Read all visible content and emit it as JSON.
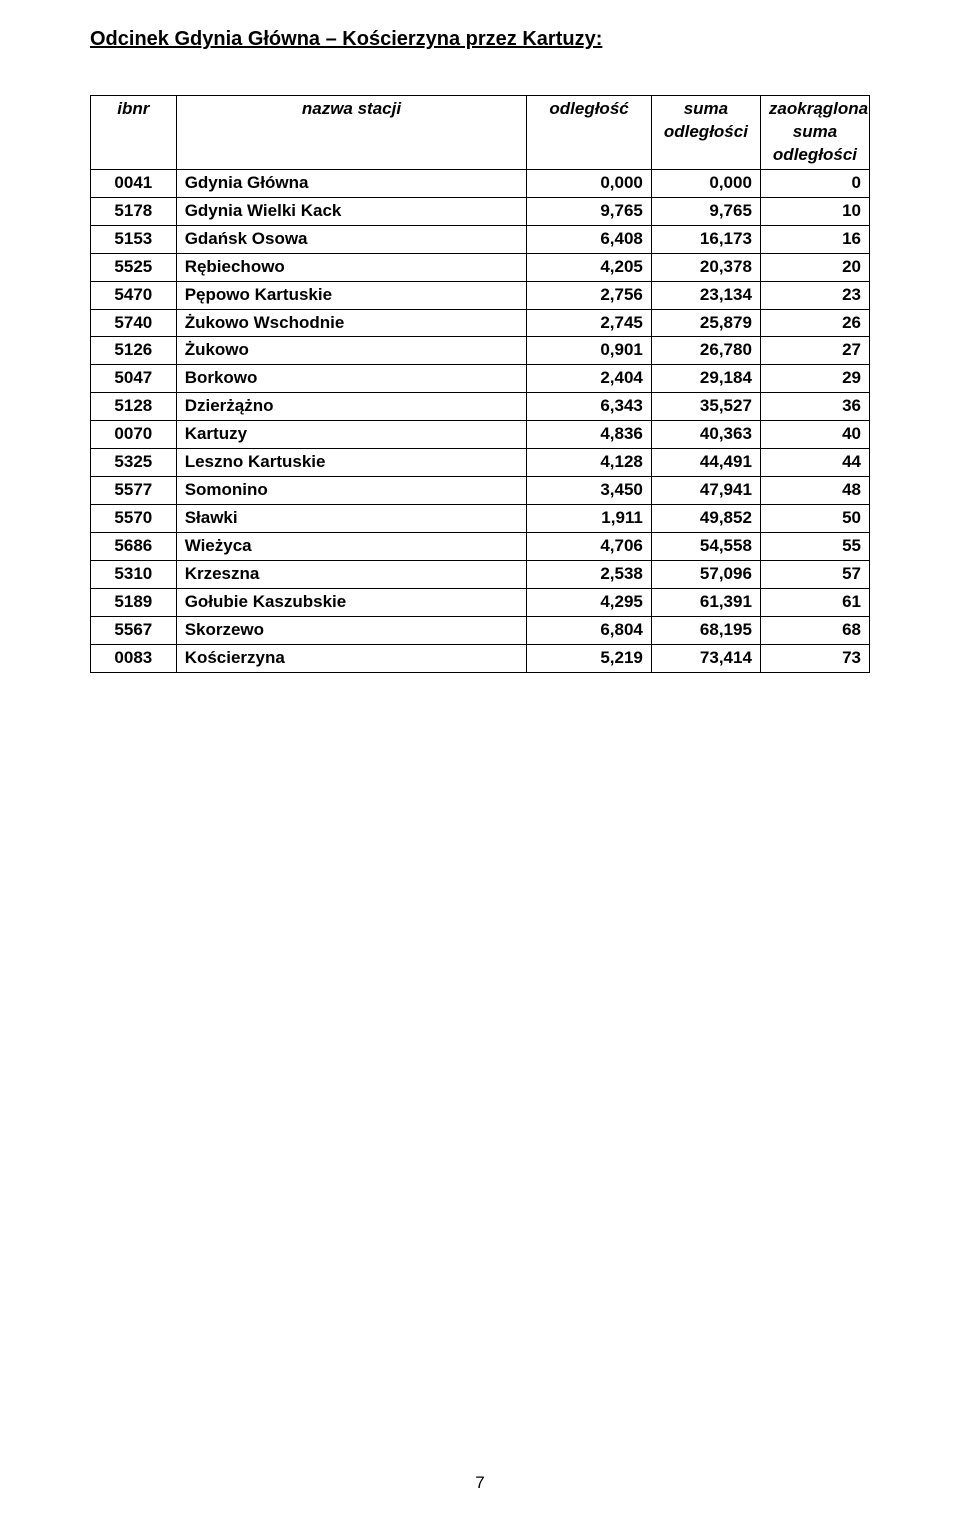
{
  "title": "Odcinek Gdynia Główna – Kościerzyna przez Kartuzy:",
  "page_number": "7",
  "table": {
    "columns": {
      "ibnr": "ibnr",
      "name": "nazwa stacji",
      "dist": "odległość",
      "sum": "suma odległości",
      "round": "zaokrąglona suma odległości"
    },
    "rows": [
      {
        "ibnr": "0041",
        "name": "Gdynia Główna",
        "dist": "0,000",
        "sum": "0,000",
        "round": "0"
      },
      {
        "ibnr": "5178",
        "name": "Gdynia Wielki Kack",
        "dist": "9,765",
        "sum": "9,765",
        "round": "10"
      },
      {
        "ibnr": "5153",
        "name": "Gdańsk Osowa",
        "dist": "6,408",
        "sum": "16,173",
        "round": "16"
      },
      {
        "ibnr": "5525",
        "name": "Rębiechowo",
        "dist": "4,205",
        "sum": "20,378",
        "round": "20"
      },
      {
        "ibnr": "5470",
        "name": "Pępowo Kartuskie",
        "dist": "2,756",
        "sum": "23,134",
        "round": "23"
      },
      {
        "ibnr": "5740",
        "name": "Żukowo Wschodnie",
        "dist": "2,745",
        "sum": "25,879",
        "round": "26"
      },
      {
        "ibnr": "5126",
        "name": "Żukowo",
        "dist": "0,901",
        "sum": "26,780",
        "round": "27"
      },
      {
        "ibnr": "5047",
        "name": "Borkowo",
        "dist": "2,404",
        "sum": "29,184",
        "round": "29"
      },
      {
        "ibnr": "5128",
        "name": "Dzierżążno",
        "dist": "6,343",
        "sum": "35,527",
        "round": "36"
      },
      {
        "ibnr": "0070",
        "name": "Kartuzy",
        "dist": "4,836",
        "sum": "40,363",
        "round": "40"
      },
      {
        "ibnr": "5325",
        "name": "Leszno Kartuskie",
        "dist": "4,128",
        "sum": "44,491",
        "round": "44"
      },
      {
        "ibnr": "5577",
        "name": "Somonino",
        "dist": "3,450",
        "sum": "47,941",
        "round": "48"
      },
      {
        "ibnr": "5570",
        "name": "Sławki",
        "dist": "1,911",
        "sum": "49,852",
        "round": "50"
      },
      {
        "ibnr": "5686",
        "name": "Wieżyca",
        "dist": "4,706",
        "sum": "54,558",
        "round": "55"
      },
      {
        "ibnr": "5310",
        "name": "Krzeszna",
        "dist": "2,538",
        "sum": "57,096",
        "round": "57"
      },
      {
        "ibnr": "5189",
        "name": "Gołubie Kaszubskie",
        "dist": "4,295",
        "sum": "61,391",
        "round": "61"
      },
      {
        "ibnr": "5567",
        "name": "Skorzewo",
        "dist": "6,804",
        "sum": "68,195",
        "round": "68"
      },
      {
        "ibnr": "0083",
        "name": "Kościerzyna",
        "dist": "5,219",
        "sum": "73,414",
        "round": "73"
      }
    ]
  }
}
